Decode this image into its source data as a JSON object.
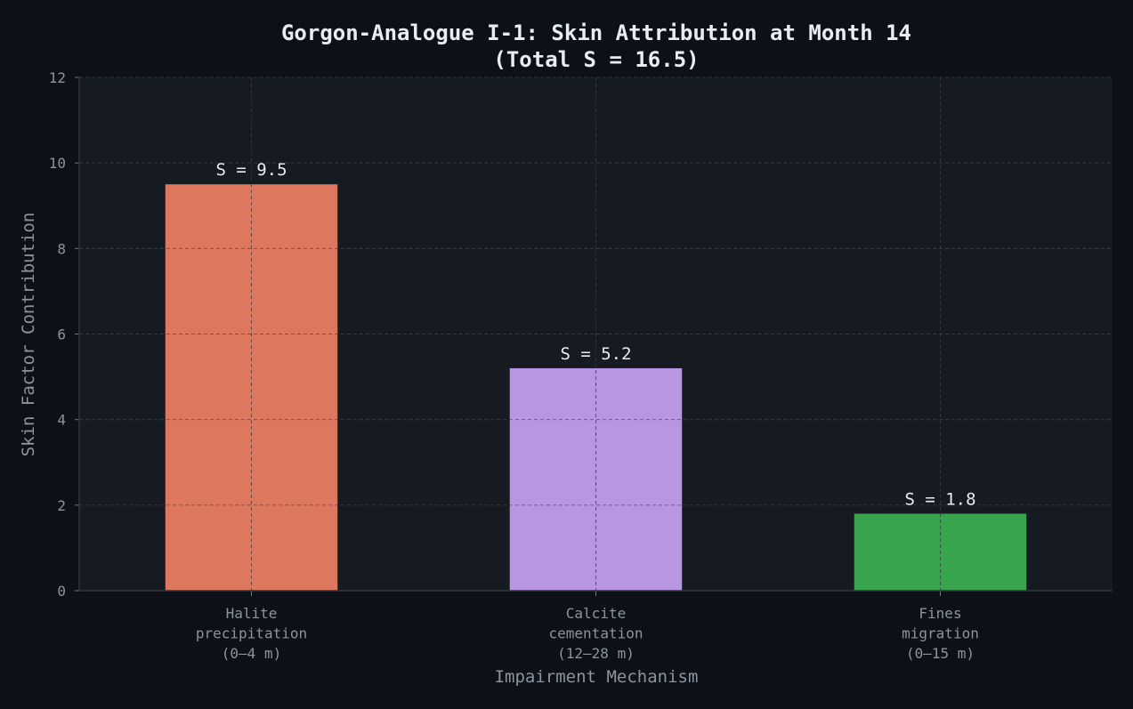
{
  "chart_data": {
    "type": "bar",
    "title": "Gorgon-Analogue I-1: Skin Attribution at Month 14",
    "subtitle": "(Total S = 16.5)",
    "xlabel": "Impairment Mechanism",
    "ylabel": "Skin Factor Contribution",
    "categories": [
      [
        "Halite",
        "precipitation",
        "(0–4 m)"
      ],
      [
        "Calcite",
        "cementation",
        "(12–28 m)"
      ],
      [
        "Fines",
        "migration",
        "(0–15 m)"
      ]
    ],
    "values": [
      9.5,
      5.2,
      1.8
    ],
    "data_labels": [
      "S = 9.5",
      "S = 5.2",
      "S = 1.8"
    ],
    "colors": [
      "#dd775e",
      "#b896e2",
      "#38a44d"
    ],
    "ylim": [
      0,
      12
    ],
    "yticks": [
      "0",
      "2",
      "4",
      "6",
      "8",
      "10",
      "12"
    ],
    "grid": true,
    "legend": "none"
  }
}
